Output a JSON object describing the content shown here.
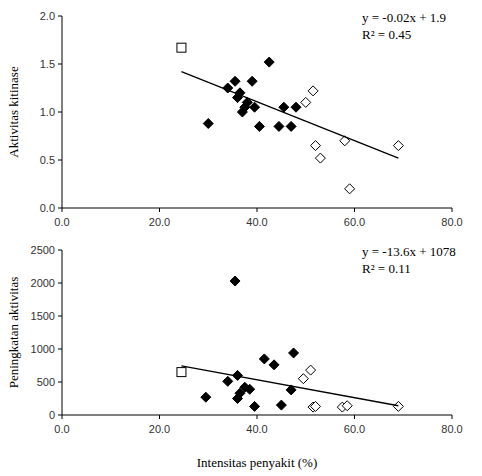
{
  "chart_data": [
    {
      "type": "scatter",
      "y_label": "Aktivitas kitinase",
      "xlim": [
        0,
        80
      ],
      "xticks": [
        {
          "value": 0,
          "label": "0.0"
        },
        {
          "value": 20,
          "label": "20.0"
        },
        {
          "value": 40,
          "label": "40.0"
        },
        {
          "value": 60,
          "label": "60.0"
        },
        {
          "value": 80,
          "label": "80.0"
        }
      ],
      "ylim": [
        0,
        2
      ],
      "yticks": [
        {
          "value": 0,
          "label": "0.0"
        },
        0.5,
        {
          "value": 1,
          "label": "1.0"
        },
        1.5,
        {
          "value": 2,
          "label": "2.0"
        }
      ],
      "annotations": [
        "y = -0.02x + 1.9",
        "R² = 0.45"
      ],
      "series": [
        {
          "marker": "square-open",
          "color": "#000000",
          "x": [
            24.5
          ],
          "values": [
            1.67
          ]
        },
        {
          "marker": "diamond",
          "color": "#000000",
          "x": [
            30,
            34,
            35.5,
            36,
            36.5,
            37,
            37.5,
            38,
            39,
            39.5,
            40.5,
            42.5,
            44.5,
            45.5,
            47,
            48
          ],
          "values": [
            0.88,
            1.25,
            1.32,
            1.15,
            1.2,
            1.0,
            1.05,
            1.1,
            1.32,
            1.05,
            0.85,
            1.52,
            0.85,
            1.05,
            0.85,
            1.05
          ]
        },
        {
          "marker": "diamond-open",
          "color": "#000000",
          "x": [
            50,
            51.5,
            52,
            53,
            58,
            59,
            69
          ],
          "values": [
            1.1,
            1.22,
            0.65,
            0.52,
            0.7,
            0.2,
            0.65
          ]
        },
        {
          "type": "line",
          "color": "#000000",
          "x": [
            24.5,
            69
          ],
          "values": [
            1.42,
            0.52
          ]
        }
      ]
    },
    {
      "type": "scatter",
      "x_label": "Intensitas penyakit (%)",
      "y_label": "Peningkatan aktivitas",
      "xlim": [
        0,
        80
      ],
      "xticks": [
        {
          "value": 0,
          "label": "0.0"
        },
        {
          "value": 20,
          "label": "20.0"
        },
        {
          "value": 40,
          "label": "40.0"
        },
        {
          "value": 60,
          "label": "60.0"
        },
        {
          "value": 80,
          "label": "80.0"
        }
      ],
      "ylim": [
        0,
        2500
      ],
      "yticks": [
        0,
        500,
        1000,
        1500,
        2000,
        2500
      ],
      "annotations": [
        "y = -13.6x + 1078",
        "R² = 0.11"
      ],
      "series": [
        {
          "marker": "square-open",
          "color": "#000000",
          "x": [
            24.5
          ],
          "values": [
            650
          ]
        },
        {
          "marker": "diamond",
          "color": "#000000",
          "x": [
            29.5,
            34,
            35.5,
            36,
            36,
            36.5,
            37.5,
            38.5,
            39.5,
            41.5,
            43.5,
            45,
            47,
            47.5
          ],
          "values": [
            270,
            510,
            2030,
            600,
            250,
            330,
            420,
            390,
            130,
            850,
            760,
            150,
            380,
            940
          ]
        },
        {
          "marker": "diamond-open",
          "color": "#000000",
          "x": [
            49.5,
            51,
            51.5,
            52,
            57.5,
            58.5,
            69
          ],
          "values": [
            550,
            680,
            120,
            130,
            120,
            140,
            130
          ]
        },
        {
          "type": "line",
          "color": "#000000",
          "x": [
            24.5,
            69
          ],
          "values": [
            745,
            140
          ]
        }
      ]
    }
  ]
}
